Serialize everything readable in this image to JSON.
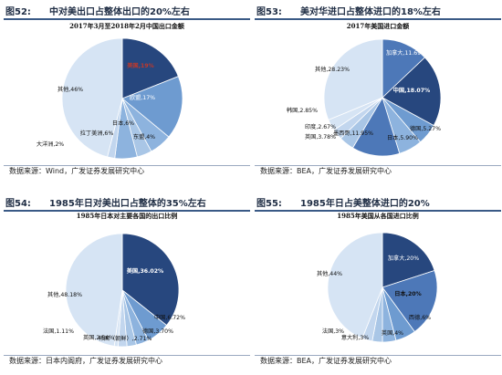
{
  "colors": {
    "header_rule": "#3a5a86",
    "pie_palette_blue": [
      "#27477e",
      "#4d78b8",
      "#6e9bd0",
      "#8db3de",
      "#a9c6e6",
      "#c2d6ee",
      "#d6e4f4",
      "#e4ecf7"
    ]
  },
  "panels": [
    {
      "fig_num": "图52:",
      "fig_title": "中对美出口占整体出口的20%左右",
      "source": "数据来源：Wind，广发证券发展研究中心"
    },
    {
      "fig_num": "图53:",
      "fig_title": "美对华进口占整体进口的18%左右",
      "source": "数据来源：BEA，广发证券发展研究中心"
    },
    {
      "fig_num": "图54:",
      "fig_title": "1985年日对美出口占整体的35%左右",
      "source": "数据来源：日本内阁府，广发证券发展研究中心"
    },
    {
      "fig_num": "图55:",
      "fig_title": "1985年日占美整体进口的20%",
      "source": "数据来源：BEA，广发证券发展研究中心"
    }
  ],
  "chart_data": [
    {
      "type": "pie",
      "title": "2017年3月至2018年2月中国出口金额",
      "slices": [
        {
          "label": "美国",
          "value": 19,
          "display": "美国,19%"
        },
        {
          "label": "欧盟",
          "value": 17,
          "display": "欧盟,17%"
        },
        {
          "label": "日本",
          "value": 6,
          "display": "日本,6%"
        },
        {
          "label": "东盟",
          "value": 4,
          "display": "东盟,4%"
        },
        {
          "label": "拉丁美洲",
          "value": 6,
          "display": "拉丁美洲,6%"
        },
        {
          "label": "大洋洲",
          "value": 2,
          "display": "大洋洲,2%"
        },
        {
          "label": "其他",
          "value": 46,
          "display": "其他,46%"
        }
      ]
    },
    {
      "type": "pie",
      "title": "2017年美国进口金额",
      "slices": [
        {
          "label": "加拿大",
          "value": 11.69,
          "display": "加拿大,11.69%"
        },
        {
          "label": "中国",
          "value": 18.07,
          "display": "中国,18.07%"
        },
        {
          "label": "德国",
          "value": 5.27,
          "display": "德国,5.27%"
        },
        {
          "label": "日本",
          "value": 5.9,
          "display": "日本,5.90%"
        },
        {
          "label": "墨西哥",
          "value": 11.95,
          "display": "墨西哥,11.95%"
        },
        {
          "label": "英国",
          "value": 3.78,
          "display": "英国,3.78%"
        },
        {
          "label": "印度",
          "value": 2.67,
          "display": "印度,2.67%"
        },
        {
          "label": "韩国",
          "value": 2.85,
          "display": "韩国,2.85%"
        },
        {
          "label": "其他",
          "value": 28.23,
          "display": "其他,28.23%"
        }
      ]
    },
    {
      "type": "pie",
      "title": "1985年日本对主要各国的出口比例",
      "slices": [
        {
          "label": "美国",
          "value": 36.02,
          "display": "美国,36.02%"
        },
        {
          "label": "中国",
          "value": 6.72,
          "display": "中国,6.72%"
        },
        {
          "label": "德国",
          "value": 3.7,
          "display": "德国,3.70%"
        },
        {
          "label": "韩国（朝鲜）",
          "value": 2.71,
          "display": "韩国（朝鲜）,2.71%"
        },
        {
          "label": "英国",
          "value": 2.54,
          "display": "英国,2.54%"
        },
        {
          "label": "法国",
          "value": 1.11,
          "display": "法国,1.11%"
        },
        {
          "label": "其他",
          "value": 48.18,
          "display": "其他,48.18%"
        }
      ]
    },
    {
      "type": "pie",
      "title": "1985年美国从各国进口比例",
      "slices": [
        {
          "label": "加拿大",
          "value": 20,
          "display": "加拿大,20%"
        },
        {
          "label": "日本",
          "value": 20,
          "display": "日本,20%"
        },
        {
          "label": "西德",
          "value": 6,
          "display": "西德,6%"
        },
        {
          "label": "英国",
          "value": 4,
          "display": "英国,4%"
        },
        {
          "label": "意大利",
          "value": 3,
          "display": "意大利,3%"
        },
        {
          "label": "法国",
          "value": 3,
          "display": "法国,3%"
        },
        {
          "label": "其他",
          "value": 44,
          "display": "其他,44%"
        }
      ]
    }
  ]
}
